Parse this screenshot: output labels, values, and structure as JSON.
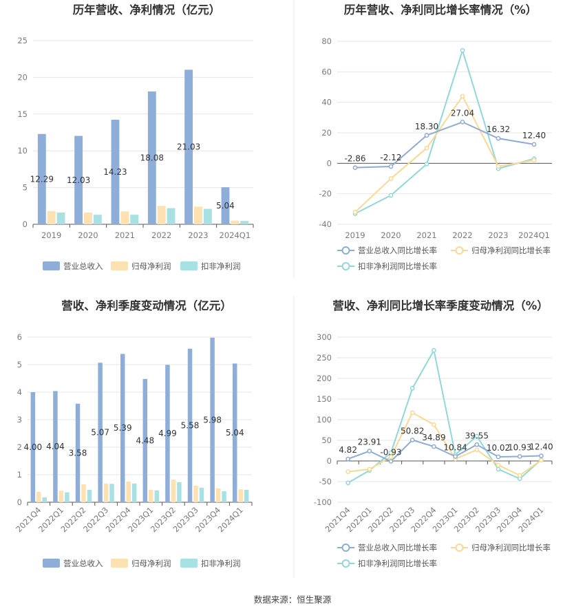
{
  "source_note": "数据来源：恒生聚源",
  "colors": {
    "revenue": "#8eaed9",
    "net_profit": "#fde1b1",
    "deducted_profit": "#a8e1e4",
    "revenue_line": "#8eaad6",
    "net_line": "#fdd891",
    "deducted_line": "#8fd8db"
  },
  "chart_data": [
    {
      "id": "annual_bar",
      "type": "bar",
      "title": "历年营收、净利情况（亿元）",
      "categories": [
        "2019",
        "2020",
        "2021",
        "2022",
        "2023",
        "2024Q1"
      ],
      "ylim": [
        0,
        25
      ],
      "yticks": [
        "0",
        "5",
        "10",
        "15",
        "20",
        "25"
      ],
      "series": [
        {
          "name": "营业总收入",
          "values": [
            12.29,
            12.03,
            14.23,
            18.08,
            21.03,
            5.04
          ],
          "labels": [
            "12.29",
            "12.03",
            "14.23",
            "18.08",
            "21.03",
            "5.04"
          ]
        },
        {
          "name": "归母净利润",
          "values": [
            1.8,
            1.6,
            1.75,
            2.5,
            2.4,
            0.5
          ]
        },
        {
          "name": "扣非净利润",
          "values": [
            1.6,
            1.3,
            1.3,
            2.2,
            2.1,
            0.45
          ]
        }
      ],
      "legend": "bottom"
    },
    {
      "id": "annual_line",
      "type": "line",
      "title": "历年营收、净利同比增长率情况（%）",
      "categories": [
        "2019",
        "2020",
        "2021",
        "2022",
        "2023",
        "2024Q1"
      ],
      "ylim": [
        -40,
        80
      ],
      "yticks": [
        "-40",
        "-20",
        "0",
        "20",
        "40",
        "60",
        "80"
      ],
      "series": [
        {
          "name": "营业总收入同比增长率",
          "values": [
            -2.86,
            -2.12,
            18.3,
            27.04,
            16.32,
            12.4
          ],
          "labels": [
            "-2.86",
            "-2.12",
            "18.30",
            "27.04",
            "16.32",
            "12.40"
          ]
        },
        {
          "name": "归母净利润同比增长率",
          "values": [
            -32,
            -10,
            10,
            44,
            -2,
            2
          ]
        },
        {
          "name": "扣非净利润同比增长率",
          "values": [
            -33,
            -21,
            -0.5,
            74,
            -3.5,
            3
          ]
        }
      ],
      "legend": "bottom"
    },
    {
      "id": "quarterly_bar",
      "type": "bar",
      "title": "营收、净利季度变动情况（亿元）",
      "categories": [
        "2021Q4",
        "2022Q1",
        "2022Q2",
        "2022Q3",
        "2022Q4",
        "2023Q1",
        "2023Q2",
        "2023Q3",
        "2023Q4",
        "2024Q1"
      ],
      "ylim": [
        0,
        6
      ],
      "yticks": [
        "0",
        "1",
        "2",
        "3",
        "4",
        "5",
        "6"
      ],
      "series": [
        {
          "name": "营业总收入",
          "values": [
            4.0,
            4.04,
            3.58,
            5.07,
            5.39,
            4.48,
            4.99,
            5.58,
            5.98,
            5.04
          ],
          "labels": [
            "4.00",
            "4.04",
            "3.58",
            "5.07",
            "5.39",
            "4.48",
            "4.99",
            "5.58",
            "5.98",
            "5.04"
          ]
        },
        {
          "name": "归母净利润",
          "values": [
            0.38,
            0.42,
            0.65,
            0.68,
            0.75,
            0.45,
            0.82,
            0.6,
            0.5,
            0.47
          ]
        },
        {
          "name": "扣非净利润",
          "values": [
            0.18,
            0.36,
            0.45,
            0.67,
            0.68,
            0.43,
            0.73,
            0.53,
            0.4,
            0.45
          ]
        }
      ],
      "legend": "bottom"
    },
    {
      "id": "quarterly_line",
      "type": "line",
      "title": "营收、净利同比增长率季度变动情况（%）",
      "categories": [
        "2021Q4",
        "2022Q1",
        "2022Q2",
        "2022Q3",
        "2022Q4",
        "2023Q1",
        "2023Q2",
        "2023Q3",
        "2023Q4",
        "2024Q1"
      ],
      "ylim": [
        -100,
        300
      ],
      "yticks": [
        "-100",
        "-50",
        "0",
        "50",
        "100",
        "150",
        "200",
        "250",
        "300"
      ],
      "series": [
        {
          "name": "营业总收入同比增长率",
          "values": [
            4.82,
            23.91,
            -0.93,
            50.82,
            34.89,
            10.84,
            39.55,
            10.02,
            10.93,
            12.4
          ],
          "labels": [
            "4.82",
            "23.91",
            "-0.93",
            "50.82",
            "34.89",
            "10.84",
            "39.55",
            "10.02",
            "10.93",
            "12.40"
          ]
        },
        {
          "name": "归母净利润同比增长率",
          "values": [
            -26,
            -20,
            10,
            117,
            88,
            5,
            27,
            -10,
            -35,
            2
          ]
        },
        {
          "name": "扣非净利润同比增长率",
          "values": [
            -53,
            -23,
            20,
            176,
            268,
            15,
            60,
            -20,
            -43,
            3
          ]
        }
      ],
      "legend": "bottom"
    }
  ]
}
